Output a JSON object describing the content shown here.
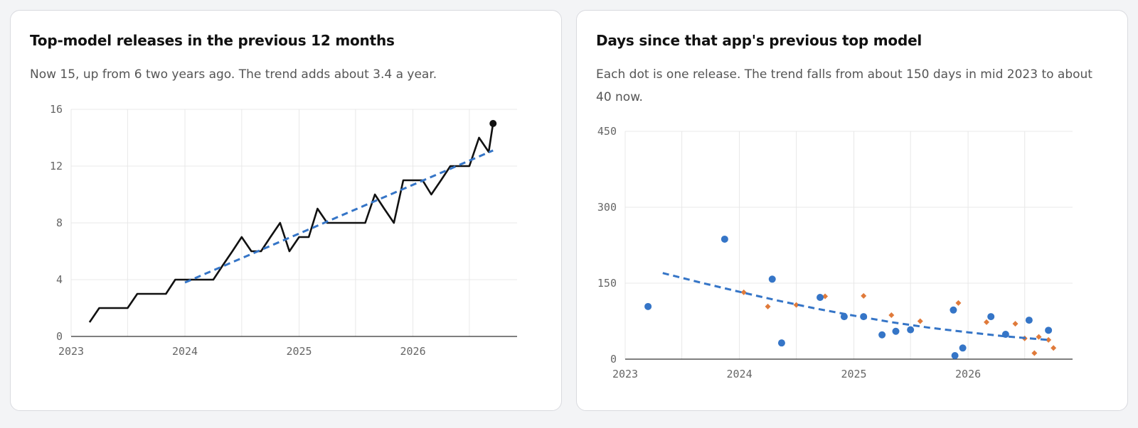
{
  "colors": {
    "line": "#111111",
    "trend": "#3575c7",
    "dot_blue": "#3575c7",
    "dot_orange": "#e07a3a",
    "grid": "#e8e8e8",
    "axis": "#333333"
  },
  "chart_data": [
    {
      "type": "line",
      "title": "Top-model releases in the previous 12 months",
      "subtitle": "Now 15, up from 6 two years ago. The trend adds about 3.4 a year.",
      "x_type": "date",
      "xlim": [
        "2023-01-01",
        "2026-12-01"
      ],
      "ylim": [
        0,
        16
      ],
      "x_ticks": [
        {
          "x": "2023-01-01",
          "label": "2023"
        },
        {
          "x": "2024-01-01",
          "label": "2024"
        },
        {
          "x": "2025-01-01",
          "label": "2025"
        },
        {
          "x": "2026-01-01",
          "label": "2026"
        }
      ],
      "y_ticks": [
        0,
        4,
        8,
        12,
        16
      ],
      "grid": true,
      "series": [
        {
          "role": "count",
          "x": [
            "2023-03-01",
            "2023-04-01",
            "2023-05-01",
            "2023-06-01",
            "2023-07-01",
            "2023-08-01",
            "2023-09-01",
            "2023-10-01",
            "2023-11-01",
            "2023-12-01",
            "2024-01-01",
            "2024-02-01",
            "2024-03-01",
            "2024-04-01",
            "2024-05-01",
            "2024-06-01",
            "2024-07-01",
            "2024-08-01",
            "2024-09-01",
            "2024-10-01",
            "2024-11-01",
            "2024-12-01",
            "2025-01-01",
            "2025-02-01",
            "2025-03-01",
            "2025-04-01",
            "2025-05-01",
            "2025-06-01",
            "2025-07-01",
            "2025-08-01",
            "2025-09-01",
            "2025-10-01",
            "2025-11-01",
            "2025-12-01",
            "2026-01-01",
            "2026-02-01",
            "2026-03-01",
            "2026-04-01",
            "2026-05-01",
            "2026-06-01",
            "2026-07-01",
            "2026-08-01",
            "2026-09-01"
          ],
          "y": [
            1,
            2,
            2,
            2,
            2,
            3,
            3,
            3,
            3,
            4,
            4,
            4,
            4,
            4,
            5,
            6,
            7,
            6,
            6,
            7,
            8,
            6,
            7,
            7,
            9,
            8,
            8,
            8,
            8,
            8,
            10,
            9,
            8,
            11,
            11,
            11,
            10,
            11,
            12,
            12,
            12,
            14,
            13
          ],
          "last_point": {
            "x": "2026-09-15",
            "y": 15
          }
        },
        {
          "role": "trend",
          "style": "dashed",
          "x": [
            "2024-01-01",
            "2026-09-15"
          ],
          "y": [
            3.8,
            13.1
          ]
        }
      ]
    },
    {
      "type": "scatter",
      "title": "Days since that app's previous top model",
      "subtitle": "Each dot is one release. The trend falls from about 150 days in mid 2023 to about 40 now.",
      "x_type": "date",
      "xlim": [
        "2023-01-01",
        "2026-12-01"
      ],
      "ylim": [
        0,
        450
      ],
      "x_ticks": [
        {
          "x": "2023-01-01",
          "label": "2023"
        },
        {
          "x": "2024-01-01",
          "label": "2024"
        },
        {
          "x": "2025-01-01",
          "label": "2025"
        },
        {
          "x": "2026-01-01",
          "label": "2026"
        }
      ],
      "y_ticks": [
        0,
        150,
        300,
        450
      ],
      "grid": true,
      "series": [
        {
          "marker": "circle",
          "x": [
            "2023-03-15",
            "2023-11-15",
            "2024-04-15",
            "2024-05-15",
            "2024-09-15",
            "2024-12-01",
            "2025-02-01",
            "2025-04-01",
            "2025-05-15",
            "2025-07-01",
            "2025-11-15",
            "2025-11-20",
            "2025-12-15",
            "2026-03-15",
            "2026-05-01",
            "2026-07-15",
            "2026-09-15"
          ],
          "y": [
            104,
            237,
            158,
            32,
            122,
            84,
            84,
            48,
            55,
            58,
            97,
            7,
            22,
            84,
            49,
            77,
            57
          ]
        },
        {
          "marker": "diamond",
          "x": [
            "2024-01-15",
            "2024-04-01",
            "2024-07-01",
            "2024-10-01",
            "2025-02-01",
            "2025-05-01",
            "2025-08-01",
            "2025-12-01",
            "2026-03-01",
            "2026-06-01",
            "2026-07-01",
            "2026-08-01",
            "2026-08-15",
            "2026-09-15",
            "2026-10-01"
          ],
          "y": [
            132,
            104,
            107,
            124,
            125,
            87,
            75,
            111,
            73,
            70,
            41,
            12,
            44,
            38,
            22
          ]
        },
        {
          "role": "trend",
          "style": "dashed",
          "x": [
            "2023-05-01",
            "2023-09-01",
            "2024-01-01",
            "2024-05-01",
            "2024-09-01",
            "2025-01-01",
            "2025-05-01",
            "2025-09-01",
            "2026-01-01",
            "2026-05-01",
            "2026-09-15"
          ],
          "y": [
            170,
            151,
            133,
            116,
            100,
            86,
            73,
            62,
            53,
            45,
            38
          ]
        }
      ]
    }
  ]
}
